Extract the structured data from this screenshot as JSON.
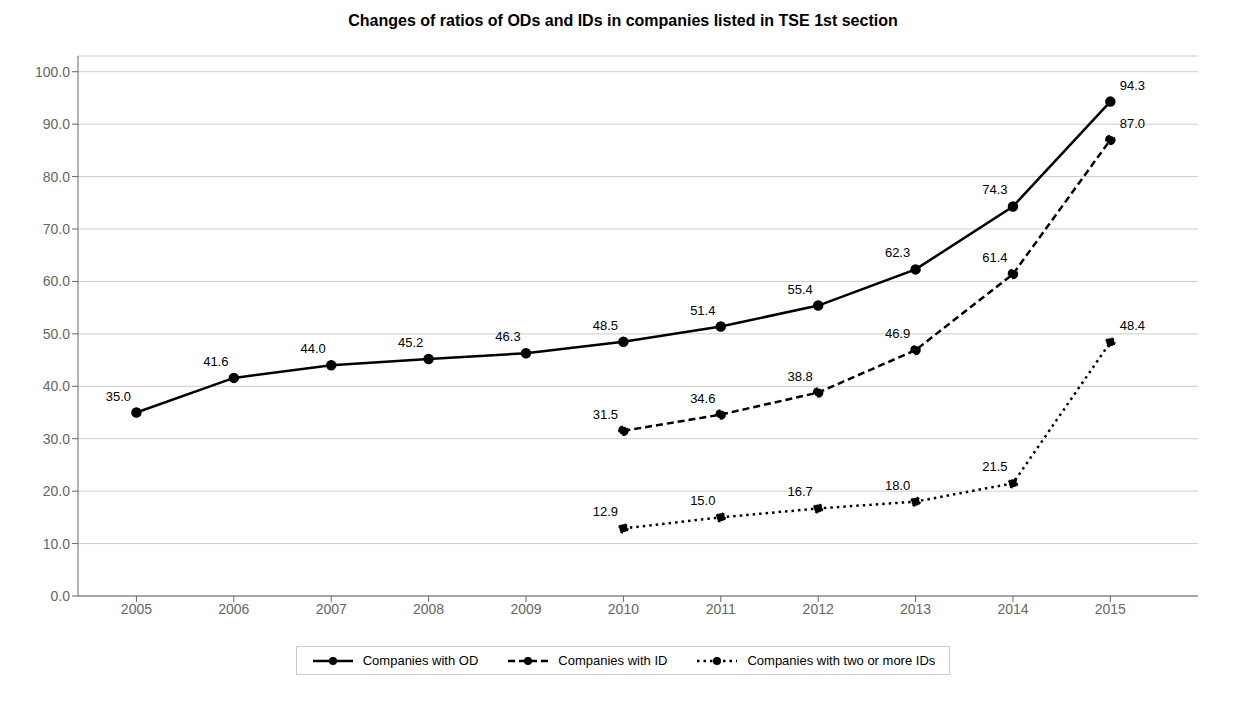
{
  "chart_data": {
    "type": "line",
    "title": "Changes of ratios of ODs and IDs in companies listed in TSE 1st section",
    "x": [
      2005,
      2006,
      2007,
      2008,
      2009,
      2010,
      2011,
      2012,
      2013,
      2014,
      2015
    ],
    "xlim": [
      2004.4,
      2015.9
    ],
    "xticks": [
      2005,
      2006,
      2007,
      2008,
      2009,
      2010,
      2011,
      2012,
      2013,
      2014,
      2015
    ],
    "ylim": [
      0.0,
      103.0
    ],
    "yticks": [
      {
        "value": 0,
        "label": "0.0"
      },
      {
        "value": 10,
        "label": "10.0"
      },
      {
        "value": 20,
        "label": "20.0"
      },
      {
        "value": 30,
        "label": "30.0"
      },
      {
        "value": 40,
        "label": "40.0"
      },
      {
        "value": 50,
        "label": "50.0"
      },
      {
        "value": 60,
        "label": "60.0"
      },
      {
        "value": 70,
        "label": "70.0"
      },
      {
        "value": 80,
        "label": "80.0"
      },
      {
        "value": 90,
        "label": "90.0"
      },
      {
        "value": 100,
        "label": "100.0"
      }
    ],
    "grid": "y",
    "legend": "bottom",
    "data_labels": true,
    "series": [
      {
        "name": "Companies with OD",
        "color": "#000000",
        "line_style": "solid",
        "marker": "circle",
        "values": [
          35.0,
          41.6,
          44.0,
          45.2,
          46.3,
          48.5,
          51.4,
          55.4,
          62.3,
          74.3,
          94.3
        ],
        "value_labels": [
          "35.0",
          "41.6",
          "44.0",
          "45.2",
          "46.3",
          "48.5",
          "51.4",
          "55.4",
          "62.3",
          "74.3",
          "94.3"
        ]
      },
      {
        "name": "Companies with ID",
        "color": "#000000",
        "line_style": "dashed",
        "marker": "circle",
        "values": [
          null,
          null,
          null,
          null,
          null,
          31.5,
          34.6,
          38.8,
          46.9,
          61.4,
          87.0
        ],
        "value_labels": [
          null,
          null,
          null,
          null,
          null,
          "31.5",
          "34.6",
          "38.8",
          "46.9",
          "61.4",
          "87.0"
        ]
      },
      {
        "name": "Companies with two or more IDs",
        "color": "#000000",
        "line_style": "dotted",
        "marker": "circle",
        "values": [
          null,
          null,
          null,
          null,
          null,
          12.9,
          15.0,
          16.7,
          18.0,
          21.5,
          48.4
        ],
        "value_labels": [
          null,
          null,
          null,
          null,
          null,
          "12.9",
          "15.0",
          "16.7",
          "18.0",
          "21.5",
          "48.4"
        ]
      }
    ]
  }
}
